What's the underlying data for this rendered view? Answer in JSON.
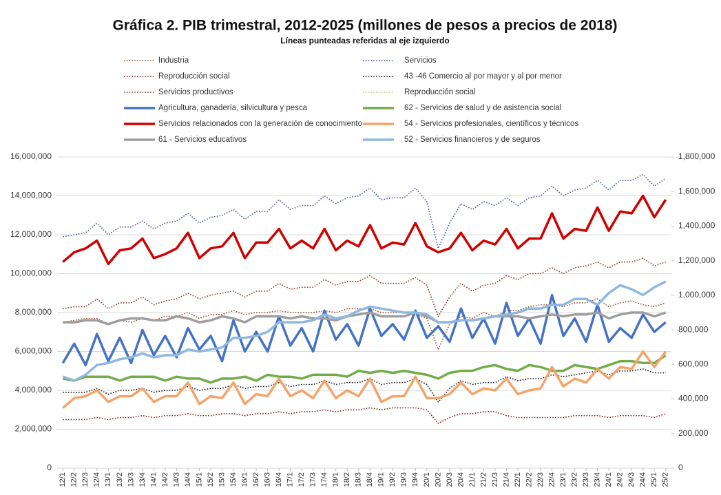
{
  "chart_data": {
    "type": "line",
    "title": "Gráfica 2. PIB trimestral, 2012-2025 (millones de pesos a precios de 2018)",
    "subtitle": "Líneas punteadas referidas al eje izquierdo",
    "categories": [
      "12/1",
      "12/2",
      "12/3",
      "12/4",
      "13/1",
      "13/2",
      "13/3",
      "13/4",
      "14/1",
      "14/2",
      "14/3",
      "14/4",
      "15/1",
      "15/2",
      "15/3",
      "15/4",
      "16/1",
      "16/2",
      "16/3",
      "16/4",
      "17/1",
      "17/2",
      "17/3",
      "17/4",
      "18/1",
      "18/2",
      "18/3",
      "18/4",
      "19/1",
      "19/2",
      "19/3",
      "19/4",
      "20/1",
      "20/2",
      "20/3",
      "20/4",
      "21/1",
      "21/2",
      "21/3",
      "21/4",
      "22/1",
      "22/2",
      "22/3",
      "22/4",
      "23/1",
      "23/2",
      "23/3",
      "23/4",
      "24/1",
      "24/2",
      "24/3",
      "24/4",
      "25/1",
      "25/2"
    ],
    "ylim": [
      0,
      16000000
    ],
    "yticks": [
      0,
      {
        "value": 2000000,
        "label": "2,000,000"
      },
      {
        "value": 4000000,
        "label": "4,000,000"
      },
      {
        "value": 6000000,
        "label": "6,000,000"
      },
      {
        "value": 8000000,
        "label": "8,000,000"
      },
      {
        "value": 10000000,
        "label": "10,000,000"
      },
      {
        "value": 12000000,
        "label": "12,000,000"
      },
      {
        "value": 14000000,
        "label": "14,000,000"
      },
      {
        "value": 16000000,
        "label": "16,000,000"
      }
    ],
    "y2lim": [
      0,
      1800000
    ],
    "y2ticks": [
      0,
      {
        "value": 200000,
        "label": "200,000"
      },
      {
        "value": 400000,
        "label": "400,000"
      },
      {
        "value": 600000,
        "label": "600,000"
      },
      {
        "value": 800000,
        "label": "800,000"
      },
      {
        "value": 1000000,
        "label": "1,000,000"
      },
      {
        "value": 1200000,
        "label": "1,200,000"
      },
      {
        "value": 1400000,
        "label": "1,400,000"
      },
      {
        "value": 1600000,
        "label": "1,600,000"
      },
      {
        "value": 1800000,
        "label": "1,800,000"
      }
    ],
    "grid": true,
    "legend": "top",
    "series": [
      {
        "name": "Industria",
        "color": "#a0522d",
        "axis": "y",
        "values": [
          7500000,
          7600000,
          7700000,
          7700000,
          7400000,
          7600000,
          7500000,
          7700000,
          7600000,
          7800000,
          7800000,
          8000000,
          7700000,
          7900000,
          7900000,
          8100000,
          7900000,
          8000000,
          8000000,
          8100000,
          8000000,
          8000000,
          8000000,
          8100000,
          8000000,
          8200000,
          8200000,
          8200000,
          8000000,
          8000000,
          8000000,
          7900000,
          7700000,
          6100000,
          7400000,
          7800000,
          7700000,
          8000000,
          7800000,
          8100000,
          8100000,
          8300000,
          8400000,
          8400000,
          8300000,
          8500000,
          8500000,
          8700000,
          8300000,
          8500000,
          8600000,
          8400000,
          8300000,
          8500000
        ]
      },
      {
        "name": "Servicios",
        "color": "#4a5aa8",
        "axis": "y",
        "values": [
          11900000,
          12000000,
          12100000,
          12600000,
          12000000,
          12400000,
          12400000,
          12700000,
          12300000,
          12600000,
          12700000,
          13100000,
          12600000,
          12900000,
          13000000,
          13300000,
          12800000,
          13200000,
          13200000,
          13800000,
          13300000,
          13500000,
          13500000,
          14000000,
          13600000,
          13900000,
          14000000,
          14400000,
          13800000,
          13900000,
          13900000,
          14400000,
          13700000,
          11300000,
          12600000,
          13600000,
          13300000,
          13700000,
          13500000,
          13900000,
          13500000,
          13900000,
          14000000,
          14500000,
          14000000,
          14300000,
          14400000,
          14800000,
          14300000,
          14800000,
          14800000,
          15100000,
          14500000,
          14900000
        ]
      },
      {
        "name": "Reproducción social",
        "color": "#8b1a1a",
        "axis": "y",
        "values": [
          2500000,
          2500000,
          2500000,
          2600000,
          2500000,
          2600000,
          2600000,
          2700000,
          2600000,
          2700000,
          2700000,
          2800000,
          2700000,
          2700000,
          2800000,
          2800000,
          2700000,
          2800000,
          2800000,
          2900000,
          2800000,
          2900000,
          2900000,
          3000000,
          2900000,
          3000000,
          3000000,
          3100000,
          3000000,
          3100000,
          3100000,
          3100000,
          3000000,
          2300000,
          2600000,
          2800000,
          2800000,
          2900000,
          2900000,
          2700000,
          2600000,
          2600000,
          2600000,
          2600000,
          2600000,
          2700000,
          2700000,
          2700000,
          2600000,
          2700000,
          2700000,
          2700000,
          2600000,
          2800000
        ]
      },
      {
        "name": "43 -46  Comercio al por mayor y al por menor",
        "color": "#1a1a1a",
        "axis": "y",
        "values": [
          3900000,
          3900000,
          3900000,
          4100000,
          3800000,
          4000000,
          4000000,
          4100000,
          3900000,
          4000000,
          4000000,
          4200000,
          4000000,
          4100000,
          4100000,
          4300000,
          4100000,
          4200000,
          4200000,
          4400000,
          4200000,
          4300000,
          4300000,
          4500000,
          4300000,
          4400000,
          4400000,
          4600000,
          4300000,
          4400000,
          4400000,
          4600000,
          4300000,
          3400000,
          4100000,
          4500000,
          4300000,
          4400000,
          4400000,
          4700000,
          4500000,
          4600000,
          4600000,
          4800000,
          4700000,
          4800000,
          4900000,
          5000000,
          4800000,
          5000000,
          5000000,
          5100000,
          4900000,
          4900000
        ]
      },
      {
        "name": "Servicios productivos",
        "color": "#8b3a2a",
        "axis": "y",
        "values": [
          8200000,
          8300000,
          8300000,
          8700000,
          8200000,
          8500000,
          8500000,
          8800000,
          8400000,
          8600000,
          8700000,
          9000000,
          8700000,
          8900000,
          9000000,
          9100000,
          8800000,
          9100000,
          9100000,
          9500000,
          9200000,
          9300000,
          9300000,
          9700000,
          9400000,
          9600000,
          9600000,
          9900000,
          9500000,
          9500000,
          9500000,
          9800000,
          9400000,
          7800000,
          8800000,
          9500000,
          9100000,
          9400000,
          9500000,
          9900000,
          9700000,
          10000000,
          10000000,
          10300000,
          10000000,
          10300000,
          10400000,
          10600000,
          10300000,
          10600000,
          10600000,
          10800000,
          10400000,
          10600000
        ]
      },
      {
        "name": "Reproducción social",
        "color": "#c4c46a",
        "axis": "y",
        "values": [
          null,
          null,
          null,
          null,
          null,
          null,
          null,
          null,
          null,
          null,
          null,
          null,
          null,
          null,
          null,
          null,
          null,
          null,
          null,
          null,
          null,
          null,
          null,
          null,
          null,
          null,
          null,
          null,
          null,
          null,
          null,
          null,
          null,
          null,
          null,
          null,
          null,
          null,
          null,
          null,
          null,
          null,
          null,
          null,
          null,
          null,
          null,
          null,
          null,
          null,
          null,
          null,
          null,
          null
        ]
      },
      {
        "name": "Agricultura, ganadería, silvicultura y pesca",
        "color": "#4472c4",
        "axis": "y2",
        "values": [
          608000,
          720000,
          596000,
          776000,
          619000,
          754000,
          608000,
          799000,
          653000,
          765000,
          641000,
          810000,
          686000,
          765000,
          619000,
          855000,
          675000,
          788000,
          675000,
          878000,
          709000,
          810000,
          675000,
          911000,
          743000,
          833000,
          709000,
          923000,
          765000,
          833000,
          743000,
          911000,
          754000,
          821000,
          731000,
          923000,
          754000,
          866000,
          720000,
          956000,
          765000,
          866000,
          720000,
          1001000,
          765000,
          866000,
          731000,
          945000,
          731000,
          810000,
          754000,
          889000,
          788000,
          844000
        ]
      },
      {
        "name": "62 - Servicios de salud y de asistencia social",
        "color": "#70ad47",
        "axis": "y2",
        "values": [
          518000,
          506000,
          529000,
          529000,
          529000,
          506000,
          529000,
          529000,
          529000,
          506000,
          529000,
          518000,
          518000,
          495000,
          518000,
          518000,
          529000,
          506000,
          540000,
          529000,
          529000,
          518000,
          540000,
          540000,
          540000,
          529000,
          563000,
          551000,
          563000,
          551000,
          563000,
          551000,
          540000,
          518000,
          551000,
          563000,
          563000,
          585000,
          596000,
          574000,
          563000,
          596000,
          585000,
          563000,
          563000,
          596000,
          585000,
          574000,
          596000,
          619000,
          619000,
          608000,
          608000,
          653000
        ]
      },
      {
        "name": "Servicios relacionados con la generación de conocimiento",
        "color": "#d00000",
        "axis": "y2",
        "values": [
          1193000,
          1249000,
          1271000,
          1316000,
          1181000,
          1260000,
          1271000,
          1328000,
          1215000,
          1238000,
          1271000,
          1361000,
          1215000,
          1271000,
          1283000,
          1361000,
          1215000,
          1305000,
          1305000,
          1384000,
          1271000,
          1316000,
          1271000,
          1384000,
          1260000,
          1316000,
          1283000,
          1406000,
          1271000,
          1305000,
          1294000,
          1418000,
          1283000,
          1249000,
          1271000,
          1361000,
          1260000,
          1316000,
          1294000,
          1384000,
          1271000,
          1328000,
          1328000,
          1474000,
          1328000,
          1384000,
          1373000,
          1508000,
          1373000,
          1485000,
          1474000,
          1575000,
          1451000,
          1553000
        ]
      },
      {
        "name": "54 - Servicios profesionales, científicos y técnicos",
        "color": "#f4a46a",
        "axis": "y2",
        "values": [
          349000,
          405000,
          416000,
          450000,
          383000,
          416000,
          416000,
          461000,
          383000,
          416000,
          416000,
          495000,
          371000,
          416000,
          405000,
          495000,
          371000,
          428000,
          416000,
          518000,
          416000,
          450000,
          405000,
          506000,
          405000,
          450000,
          416000,
          518000,
          383000,
          416000,
          416000,
          529000,
          405000,
          405000,
          428000,
          495000,
          428000,
          461000,
          450000,
          518000,
          428000,
          450000,
          461000,
          585000,
          473000,
          518000,
          495000,
          574000,
          518000,
          585000,
          574000,
          675000,
          585000,
          675000
        ]
      },
      {
        "name": "61 - Servicios educativos",
        "color": "#9e9e9e",
        "axis": "y2",
        "values": [
          844000,
          844000,
          855000,
          855000,
          833000,
          855000,
          866000,
          866000,
          855000,
          855000,
          878000,
          866000,
          844000,
          855000,
          878000,
          866000,
          844000,
          878000,
          878000,
          878000,
          866000,
          878000,
          866000,
          866000,
          855000,
          878000,
          889000,
          900000,
          878000,
          878000,
          878000,
          900000,
          878000,
          844000,
          844000,
          855000,
          855000,
          866000,
          878000,
          878000,
          878000,
          866000,
          878000,
          889000,
          878000,
          889000,
          889000,
          900000,
          866000,
          889000,
          900000,
          900000,
          878000,
          900000
        ]
      },
      {
        "name": "52 - Servicios financieros y de seguros",
        "color": "#8fb8e0",
        "axis": "y2",
        "values": [
          529000,
          506000,
          540000,
          596000,
          608000,
          630000,
          641000,
          664000,
          641000,
          653000,
          653000,
          686000,
          675000,
          686000,
          698000,
          754000,
          754000,
          765000,
          788000,
          844000,
          844000,
          844000,
          855000,
          889000,
          866000,
          878000,
          911000,
          934000,
          923000,
          911000,
          900000,
          900000,
          889000,
          844000,
          844000,
          855000,
          855000,
          866000,
          878000,
          889000,
          900000,
          923000,
          923000,
          945000,
          945000,
          979000,
          979000,
          945000,
          1013000,
          1058000,
          1035000,
          1001000,
          1046000,
          1080000
        ]
      }
    ]
  }
}
